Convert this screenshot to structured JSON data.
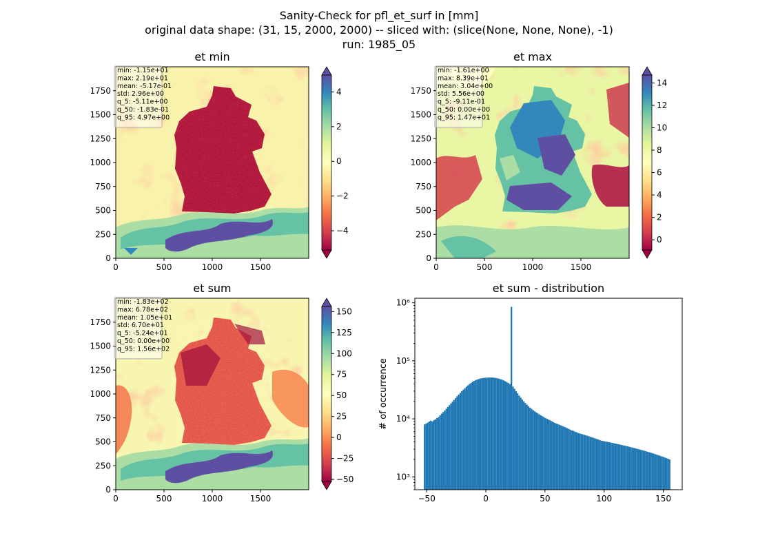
{
  "suptitle": {
    "line1": "Sanity-Check for pfl_et_surf in [mm]",
    "line2": "original data shape: (31, 15, 2000, 2000) -- sliced with: (slice(None, None, None), -1)",
    "line3": "run: 1985_05"
  },
  "colors": {
    "hist_bar": "#1f77b4",
    "stats_box_border": "#aaaaaa",
    "spectral_colormap": [
      "#9e0142",
      "#d53e4f",
      "#f46d43",
      "#fdae61",
      "#fee08b",
      "#ffffbf",
      "#e6f598",
      "#abdda4",
      "#66c2a5",
      "#3288bd",
      "#5e4fa2"
    ]
  },
  "chart_data": [
    {
      "type": "heatmap",
      "title": "et min",
      "colormap": "Spectral",
      "xticks": [
        "0",
        "500",
        "1000",
        "1500"
      ],
      "yticks": [
        "0",
        "250",
        "500",
        "750",
        "1000",
        "1250",
        "1500",
        "1750"
      ],
      "xlim": [
        0,
        2000
      ],
      "ylim": [
        0,
        2000
      ],
      "colorbar": {
        "range": [
          -5.11,
          4.97
        ],
        "ticks": [
          "−4",
          "−2",
          "0",
          "2",
          "4"
        ],
        "extend": "both"
      },
      "stats": [
        "min: -1.15e+01",
        "max: 2.19e+01",
        "mean: -5.17e-01",
        "std: 2.96e+00",
        "q_5: -5.11e+00",
        "q_50: -1.83e-01",
        "q_95: 4.97e+00"
      ]
    },
    {
      "type": "heatmap",
      "title": "et max",
      "colormap": "Spectral",
      "xticks": [
        "0",
        "500",
        "1000",
        "1500"
      ],
      "yticks": [
        "0",
        "250",
        "500",
        "750",
        "1000",
        "1250",
        "1500",
        "1750"
      ],
      "xlim": [
        0,
        2000
      ],
      "ylim": [
        0,
        2000
      ],
      "colorbar": {
        "range": [
          -0.911,
          14.7
        ],
        "ticks": [
          "0",
          "2",
          "4",
          "6",
          "8",
          "10",
          "12",
          "14"
        ],
        "extend": "both"
      },
      "stats": [
        "min: -1.61e+00",
        "max: 8.39e+01",
        "mean: 3.04e+00",
        "std: 5.56e+00",
        "q_5: -9.11e-01",
        "q_50: 0.00e+00",
        "q_95: 1.47e+01"
      ]
    },
    {
      "type": "heatmap",
      "title": "et sum",
      "colormap": "Spectral",
      "xticks": [
        "0",
        "500",
        "1000",
        "1500"
      ],
      "yticks": [
        "0",
        "250",
        "500",
        "750",
        "1000",
        "1250",
        "1500",
        "1750"
      ],
      "xlim": [
        0,
        2000
      ],
      "ylim": [
        0,
        2000
      ],
      "colorbar": {
        "range": [
          -52.4,
          156
        ],
        "ticks": [
          "−50",
          "−25",
          "0",
          "25",
          "50",
          "75",
          "100",
          "125",
          "150"
        ],
        "extend": "both"
      },
      "stats": [
        "min: -1.83e+02",
        "max: 6.78e+02",
        "mean: 1.05e+01",
        "std: 6.70e+01",
        "q_5: -5.24e+01",
        "q_50: 0.00e+00",
        "q_95: 1.56e+02"
      ]
    },
    {
      "type": "bar",
      "title": "et sum - distribution",
      "ylabel": "# of occurrence",
      "yscale": "log",
      "xlim": [
        -60,
        166
      ],
      "ylim": [
        600,
        1200000
      ],
      "xticks": [
        "−50",
        "0",
        "50",
        "100",
        "150"
      ],
      "yticks": [
        "10³",
        "10⁴",
        "10⁵",
        "10⁶"
      ],
      "bin_range": [
        -52.4,
        156
      ],
      "counts": [
        8000,
        8300,
        8600,
        9000,
        9300,
        9000,
        9500,
        9800,
        10300,
        10700,
        11500,
        12300,
        13100,
        13900,
        14900,
        16000,
        17200,
        18400,
        19700,
        21200,
        22800,
        24500,
        26200,
        28000,
        29900,
        31800,
        33800,
        35800,
        37800,
        39800,
        41700,
        43500,
        45100,
        46500,
        47700,
        48700,
        49500,
        50200,
        50700,
        51100,
        51300,
        51500,
        51600,
        51600,
        51400,
        51100,
        50600,
        50000,
        49200,
        48300,
        47200,
        46000,
        44600,
        43100,
        41500,
        39800,
        850000,
        36000,
        33000,
        30000,
        27500,
        25200,
        23200,
        21500,
        20000,
        18700,
        17500,
        16500,
        15600,
        14800,
        14100,
        13500,
        12900,
        12400,
        11900,
        11500,
        11100,
        10700,
        10300,
        10000,
        9700,
        9400,
        9100,
        8800,
        8500,
        8300,
        8100,
        7900,
        7700,
        7500,
        7300,
        7100,
        6900,
        6700,
        6500,
        6300,
        6200,
        6000,
        5900,
        5700,
        5600,
        5500,
        5400,
        5300,
        5200,
        5100,
        5000,
        4900,
        4800,
        4700,
        4600,
        4500,
        4400,
        4300,
        4200,
        4150,
        4100,
        4050,
        4000,
        3950,
        3900,
        3850,
        3800,
        3750,
        3700,
        3650,
        3600,
        3550,
        3500,
        3450,
        3400,
        3350,
        3300,
        3250,
        3200,
        3150,
        3100,
        3050,
        3000,
        2950,
        2900,
        2850,
        2800,
        2750,
        2700,
        2650,
        2600,
        2550,
        2500,
        2450,
        2400,
        2350,
        2300,
        2250,
        2200,
        2150,
        2100,
        2050,
        2000
      ]
    }
  ]
}
